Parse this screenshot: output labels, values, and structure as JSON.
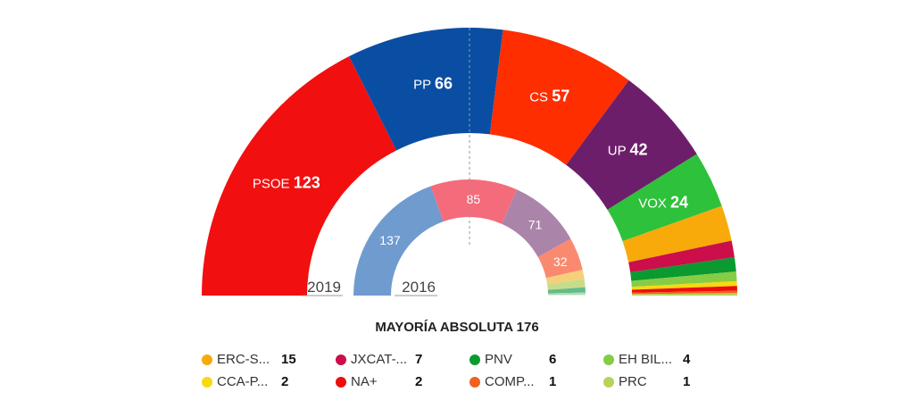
{
  "chart_data": [
    {
      "type": "pie",
      "subtype": "parliament-hemicycle",
      "year_label": "2019",
      "total_seats": 350,
      "slices": [
        {
          "name": "PSOE",
          "value": 123,
          "color": "#f20f10",
          "label": true
        },
        {
          "name": "PP",
          "value": 66,
          "color": "#0a4ea3",
          "label": true
        },
        {
          "name": "CS",
          "value": 57,
          "color": "#fe2e00",
          "label": true
        },
        {
          "name": "UP",
          "value": 42,
          "color": "#6d1e6a",
          "label": true
        },
        {
          "name": "VOX",
          "value": 24,
          "color": "#2ec13b",
          "label": true
        },
        {
          "name": "ERC-S...",
          "value": 15,
          "color": "#f7aa0a"
        },
        {
          "name": "JXCAT-...",
          "value": 7,
          "color": "#cc0e4a"
        },
        {
          "name": "PNV",
          "value": 6,
          "color": "#0b9a2f"
        },
        {
          "name": "EH BIL...",
          "value": 4,
          "color": "#86cc44"
        },
        {
          "name": "CCA-P...",
          "value": 2,
          "color": "#f8d90f"
        },
        {
          "name": "NA+",
          "value": 2,
          "color": "#ee0d0d"
        },
        {
          "name": "COMP...",
          "value": 1,
          "color": "#f0611d"
        },
        {
          "name": "PRC",
          "value": 1,
          "color": "#b6d35a"
        }
      ]
    },
    {
      "type": "pie",
      "subtype": "parliament-hemicycle",
      "year_label": "2016",
      "total_seats": 350,
      "slices": [
        {
          "value": 137,
          "color": "#6f9bcf",
          "label": true
        },
        {
          "value": 85,
          "color": "#f46b7c",
          "label": true
        },
        {
          "value": 71,
          "color": "#ab84aa",
          "label": true
        },
        {
          "value": 32,
          "color": "#f98a70",
          "label": true
        },
        {
          "value": 9,
          "color": "#f6cf7a"
        },
        {
          "value": 8,
          "color": "#c6dc8a"
        },
        {
          "value": 5,
          "color": "#64bc8a"
        },
        {
          "value": 2,
          "color": "#a9dcbc"
        },
        {
          "value": 1,
          "color": "#e9efc0"
        }
      ]
    }
  ],
  "majority": {
    "label": "MAYORÍA ABSOLUTA",
    "value": "176"
  },
  "legend": [
    {
      "name": "ERC-S...",
      "value": "15",
      "color": "#f7aa0a"
    },
    {
      "name": "JXCAT-...",
      "value": "7",
      "color": "#cc0e4a"
    },
    {
      "name": "PNV",
      "value": "6",
      "color": "#0b9a2f"
    },
    {
      "name": "EH BIL...",
      "value": "4",
      "color": "#86cc44"
    },
    {
      "name": "CCA-P...",
      "value": "2",
      "color": "#f8d90f"
    },
    {
      "name": "NA+",
      "value": "2",
      "color": "#ee0d0d"
    },
    {
      "name": "COMP...",
      "value": "1",
      "color": "#f0611d"
    },
    {
      "name": "PRC",
      "value": "1",
      "color": "#b6d35a"
    }
  ]
}
